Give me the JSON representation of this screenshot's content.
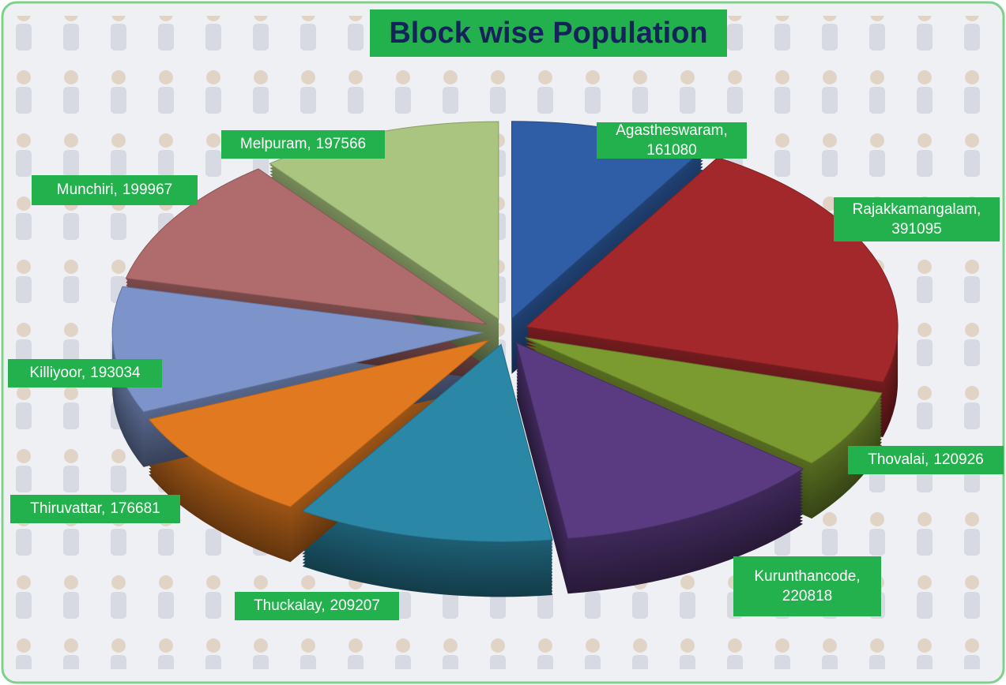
{
  "chart_data": {
    "type": "pie3d",
    "title": "Block wise Population",
    "categories": [
      "Agastheswaram,",
      "Rajakkamangalam,",
      "Thovalai,",
      "Kurunthancode,",
      "Thuckalay,",
      "Thiruvattar,",
      "Killiyoor,",
      "Munchiri,",
      "Melpuram,"
    ],
    "values": [
      161080,
      391095,
      120926,
      220818,
      209207,
      176681,
      193034,
      199967,
      197566
    ],
    "colors": [
      "#2f5ea6",
      "#a3282b",
      "#7b9a2f",
      "#5a3a80",
      "#2a87a6",
      "#e0791f",
      "#7c94c9",
      "#b06b6c",
      "#a9c57f"
    ]
  }
}
